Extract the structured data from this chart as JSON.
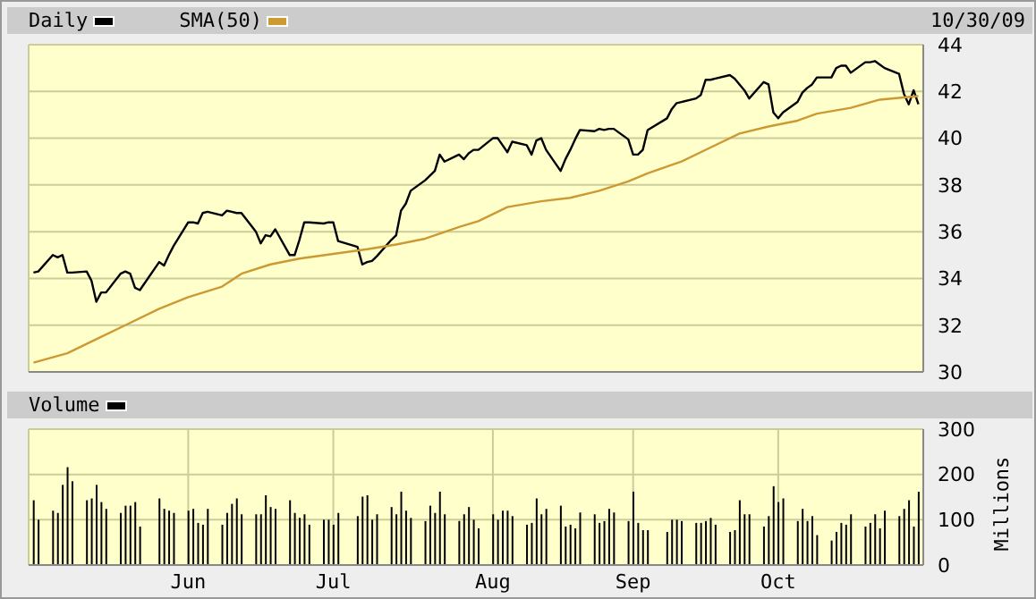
{
  "chart_data": [
    {
      "type": "line",
      "x": [
        "--04-30",
        "--05-01",
        "--05-04",
        "--05-05",
        "--05-06",
        "--05-07",
        "--05-08",
        "--05-11",
        "--05-12",
        "--05-13",
        "--05-14",
        "--05-15",
        "--05-18",
        "--05-19",
        "--05-20",
        "--05-21",
        "--05-22",
        "--05-26",
        "--05-27",
        "--05-28",
        "--05-29",
        "--06-01",
        "--06-02",
        "--06-03",
        "--06-04",
        "--06-05",
        "--06-08",
        "--06-09",
        "--06-10",
        "--06-11",
        "--06-12",
        "--06-15",
        "--06-16",
        "--06-17",
        "--06-18",
        "--06-19",
        "--06-22",
        "--06-23",
        "--06-24",
        "--06-25",
        "--06-26",
        "--06-29",
        "--06-30",
        "--07-01",
        "--07-02",
        "--07-06",
        "--07-07",
        "--07-08",
        "--07-09",
        "--07-10",
        "--07-13",
        "--07-14",
        "--07-15",
        "--07-16",
        "--07-17",
        "--07-20",
        "--07-21",
        "--07-22",
        "--07-23",
        "--07-24",
        "--07-27",
        "--07-28",
        "--07-29",
        "--07-30",
        "--07-31",
        "--08-03",
        "--08-04",
        "--08-05",
        "--08-06",
        "--08-07",
        "--08-10",
        "--08-11",
        "--08-12",
        "--08-13",
        "--08-14",
        "--08-17",
        "--08-18",
        "--08-19",
        "--08-20",
        "--08-21",
        "--08-24",
        "--08-25",
        "--08-26",
        "--08-27",
        "--08-28",
        "--08-31",
        "--09-01",
        "--09-02",
        "--09-03",
        "--09-04",
        "--09-08",
        "--09-09",
        "--09-10",
        "--09-11",
        "--09-14",
        "--09-15",
        "--09-16",
        "--09-17",
        "--09-18",
        "--09-21",
        "--09-22",
        "--09-23",
        "--09-24",
        "--09-25",
        "--09-28",
        "--09-29",
        "--09-30",
        "--10-01",
        "--10-02",
        "--10-05",
        "--10-06",
        "--10-07",
        "--10-08",
        "--10-09",
        "--10-12",
        "--10-13",
        "--10-14",
        "--10-15",
        "--10-16",
        "--10-19",
        "--10-20",
        "--10-21",
        "--10-22",
        "--10-23",
        "--10-26",
        "--10-27",
        "--10-28",
        "--10-29",
        "--10-30"
      ],
      "series": [
        {
          "name": "Daily",
          "color": "#000000",
          "values": [
            34.25,
            34.3,
            35.0,
            34.9,
            35.0,
            34.25,
            34.25,
            34.3,
            33.9,
            33.0,
            33.4,
            33.4,
            34.2,
            34.3,
            34.2,
            33.6,
            33.5,
            34.7,
            34.55,
            35.0,
            35.4,
            36.4,
            36.4,
            36.35,
            36.8,
            36.85,
            36.7,
            36.9,
            36.85,
            36.8,
            36.8,
            36.0,
            35.5,
            35.85,
            35.8,
            36.1,
            35.0,
            35.0,
            35.65,
            36.4,
            36.4,
            36.35,
            36.4,
            36.4,
            35.6,
            35.35,
            34.6,
            34.7,
            34.75,
            34.95,
            35.65,
            35.85,
            36.9,
            37.2,
            37.75,
            38.2,
            38.4,
            38.6,
            39.3,
            39.0,
            39.3,
            39.1,
            39.35,
            39.5,
            39.5,
            40.0,
            40.0,
            39.7,
            39.4,
            39.85,
            39.7,
            39.3,
            39.9,
            40.0,
            39.5,
            38.6,
            39.1,
            39.5,
            39.95,
            40.35,
            40.3,
            40.4,
            40.35,
            40.4,
            40.4,
            39.95,
            39.3,
            39.3,
            39.5,
            40.35,
            40.85,
            41.25,
            41.5,
            41.55,
            41.7,
            41.85,
            42.5,
            42.5,
            42.55,
            42.7,
            42.55,
            42.3,
            42.05,
            41.7,
            42.4,
            42.3,
            41.1,
            40.85,
            41.1,
            41.55,
            41.95,
            42.15,
            42.3,
            42.6,
            42.6,
            43.0,
            43.1,
            43.1,
            42.8,
            43.25,
            43.25,
            43.3,
            43.15,
            43.0,
            42.75,
            41.9,
            41.45,
            42.05,
            41.45
          ]
        },
        {
          "name": "SMA(50)",
          "color": "#cc9933",
          "type": "line",
          "x": [
            "--04-30",
            "--05-07",
            "--05-13",
            "--05-19",
            "--05-26",
            "--06-01",
            "--06-08",
            "--06-12",
            "--06-18",
            "--06-24",
            "--07-01",
            "--07-08",
            "--07-14",
            "--07-20",
            "--07-27",
            "--07-31",
            "--08-06",
            "--08-13",
            "--08-19",
            "--08-25",
            "--08-31",
            "--09-04",
            "--09-11",
            "--09-17",
            "--09-23",
            "--09-29",
            "--10-05",
            "--10-09",
            "--10-16",
            "--10-22",
            "--10-30"
          ],
          "values": [
            30.4,
            30.8,
            31.4,
            32.0,
            32.7,
            33.2,
            33.65,
            34.2,
            34.6,
            34.85,
            35.05,
            35.25,
            35.45,
            35.7,
            36.2,
            36.45,
            37.05,
            37.3,
            37.45,
            37.75,
            38.15,
            38.5,
            39.0,
            39.6,
            40.2,
            40.5,
            40.75,
            41.05,
            41.3,
            41.65,
            41.8
          ]
        }
      ],
      "xlim": [
        "--04-29",
        "--10-31"
      ],
      "xticks": [
        {
          "value": "--06-01",
          "label": null
        },
        {
          "value": "--07-01",
          "label": null
        },
        {
          "value": "--08-03",
          "label": null
        },
        {
          "value": "--09-01",
          "label": null
        },
        {
          "value": "--10-01",
          "label": null
        }
      ],
      "ylim": [
        30,
        44
      ],
      "yticks": [
        30,
        32,
        34,
        36,
        38,
        40,
        42,
        44
      ],
      "grid": true,
      "legend": "top left",
      "tick_labels": "y",
      "annotations": [
        "10/30/09"
      ]
    },
    {
      "type": "bar",
      "ylabel": "Millions",
      "x": [
        "--04-30",
        "--05-01",
        "--05-04",
        "--05-05",
        "--05-06",
        "--05-07",
        "--05-08",
        "--05-11",
        "--05-12",
        "--05-13",
        "--05-14",
        "--05-15",
        "--05-18",
        "--05-19",
        "--05-20",
        "--05-21",
        "--05-22",
        "--05-26",
        "--05-27",
        "--05-28",
        "--05-29",
        "--06-01",
        "--06-02",
        "--06-03",
        "--06-04",
        "--06-05",
        "--06-08",
        "--06-09",
        "--06-10",
        "--06-11",
        "--06-12",
        "--06-15",
        "--06-16",
        "--06-17",
        "--06-18",
        "--06-19",
        "--06-22",
        "--06-23",
        "--06-24",
        "--06-25",
        "--06-26",
        "--06-29",
        "--06-30",
        "--07-01",
        "--07-02",
        "--07-06",
        "--07-07",
        "--07-08",
        "--07-09",
        "--07-10",
        "--07-13",
        "--07-14",
        "--07-15",
        "--07-16",
        "--07-17",
        "--07-20",
        "--07-21",
        "--07-22",
        "--07-23",
        "--07-24",
        "--07-27",
        "--07-28",
        "--07-29",
        "--07-30",
        "--07-31",
        "--08-03",
        "--08-04",
        "--08-05",
        "--08-06",
        "--08-07",
        "--08-10",
        "--08-11",
        "--08-12",
        "--08-13",
        "--08-14",
        "--08-17",
        "--08-18",
        "--08-19",
        "--08-20",
        "--08-21",
        "--08-24",
        "--08-25",
        "--08-26",
        "--08-27",
        "--08-28",
        "--08-31",
        "--09-01",
        "--09-02",
        "--09-03",
        "--09-04",
        "--09-08",
        "--09-09",
        "--09-10",
        "--09-11",
        "--09-14",
        "--09-15",
        "--09-16",
        "--09-17",
        "--09-18",
        "--09-21",
        "--09-22",
        "--09-23",
        "--09-24",
        "--09-25",
        "--09-28",
        "--09-29",
        "--09-30",
        "--10-01",
        "--10-02",
        "--10-05",
        "--10-06",
        "--10-07",
        "--10-08",
        "--10-09",
        "--10-12",
        "--10-13",
        "--10-14",
        "--10-15",
        "--10-16",
        "--10-19",
        "--10-20",
        "--10-21",
        "--10-22",
        "--10-23",
        "--10-26",
        "--10-27",
        "--10-28",
        "--10-29",
        "--10-30"
      ],
      "series": [
        {
          "name": "Volume",
          "color": "#000000",
          "values": [
            143,
            100,
            120,
            115,
            177,
            216,
            185,
            143,
            147,
            177,
            139,
            124,
            115,
            131,
            131,
            139,
            85,
            147,
            124,
            120,
            115,
            120,
            124,
            93,
            89,
            124,
            89,
            115,
            135,
            147,
            112,
            112,
            112,
            154,
            128,
            124,
            143,
            115,
            104,
            112,
            89,
            100,
            100,
            89,
            115,
            108,
            151,
            154,
            100,
            112,
            128,
            112,
            162,
            120,
            104,
            97,
            131,
            115,
            162,
            112,
            97,
            112,
            128,
            100,
            81,
            112,
            100,
            120,
            120,
            108,
            89,
            93,
            147,
            112,
            124,
            131,
            85,
            89,
            81,
            116,
            112,
            93,
            97,
            124,
            116,
            97,
            162,
            93,
            77,
            77,
            73,
            100,
            100,
            97,
            93,
            93,
            97,
            104,
            89,
            73,
            77,
            143,
            112,
            112,
            85,
            108,
            174,
            139,
            147,
            97,
            124,
            97,
            108,
            66,
            54,
            73,
            93,
            89,
            112,
            85,
            93,
            112,
            81,
            120,
            108,
            124,
            143,
            85,
            162
          ]
        }
      ],
      "xlim": [
        "--04-29",
        "--10-31"
      ],
      "xticks": [
        {
          "value": "--06-01",
          "label": "Jun"
        },
        {
          "value": "--07-01",
          "label": "Jul"
        },
        {
          "value": "--08-03",
          "label": "Aug"
        },
        {
          "value": "--09-01",
          "label": "Sep"
        },
        {
          "value": "--10-01",
          "label": "Oct"
        }
      ],
      "ylim": [
        0,
        300
      ],
      "yticks": [
        0,
        100,
        200,
        300
      ],
      "grid": true,
      "legend": "top left"
    }
  ]
}
